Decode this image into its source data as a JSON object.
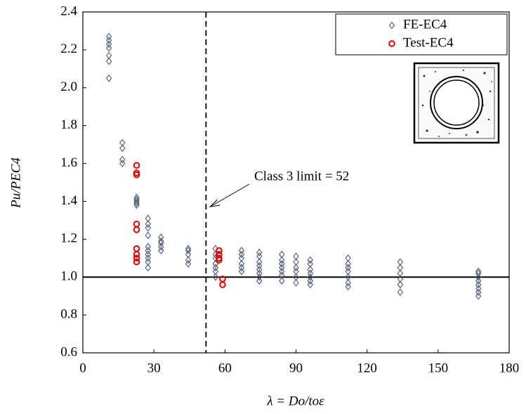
{
  "chart_data": {
    "type": "scatter",
    "xlabel": "λ = Do/toε",
    "ylabel": "Pu/PEC4",
    "xlim": [
      0,
      180
    ],
    "ylim": [
      0.6,
      2.4
    ],
    "xticks": [
      0,
      30,
      60,
      90,
      120,
      150,
      180
    ],
    "yticks": [
      0.6,
      0.8,
      {
        "value": 1,
        "label": "1.0"
      },
      1.2,
      1.4,
      1.6,
      1.8,
      {
        "value": 2,
        "label": "2.0"
      },
      2.2,
      2.4
    ],
    "legend": "upper right",
    "reference_line": 1,
    "limit_line": {
      "x": 52,
      "label": "Class 3 limit = 52"
    },
    "series": [
      {
        "name": "FE-EC4",
        "color": "#4d5b78",
        "marker": "diamond",
        "x": [
          11,
          11,
          11,
          11,
          11,
          11,
          11,
          16.7,
          16.7,
          16.7,
          16.7,
          22.7,
          22.7,
          22.7,
          22.7,
          22.7,
          27.5,
          27.5,
          27.5,
          27.5,
          27.5,
          27.5,
          27.5,
          27.5,
          27.5,
          27.5,
          33,
          33,
          33,
          33,
          33,
          44.5,
          44.5,
          44.5,
          44.5,
          44.5,
          56,
          56,
          56,
          56,
          56,
          56,
          56,
          67,
          67,
          67,
          67,
          67,
          67,
          74.5,
          74.5,
          74.5,
          74.5,
          74.5,
          74.5,
          74.5,
          74.5,
          84,
          84,
          84,
          84,
          84,
          84,
          84,
          90,
          90,
          90,
          90,
          90,
          90,
          96,
          96,
          96,
          96,
          96,
          96,
          96,
          112,
          112,
          112,
          112,
          112,
          112,
          112,
          134,
          134,
          134,
          134,
          134,
          134,
          167,
          167,
          167,
          167,
          167,
          167,
          167,
          167
        ],
        "values": [
          2.27,
          2.25,
          2.23,
          2.21,
          2.17,
          2.14,
          2.05,
          1.71,
          1.68,
          1.62,
          1.6,
          1.42,
          1.41,
          1.4,
          1.39,
          1.38,
          1.31,
          1.28,
          1.26,
          1.22,
          1.16,
          1.14,
          1.12,
          1.1,
          1.08,
          1.05,
          1.21,
          1.19,
          1.18,
          1.16,
          1.14,
          1.15,
          1.14,
          1.12,
          1.09,
          1.07,
          1.15,
          1.12,
          1.1,
          1.07,
          1.05,
          1.03,
          1,
          1.14,
          1.12,
          1.1,
          1.07,
          1.05,
          1.03,
          1.13,
          1.11,
          1.08,
          1.06,
          1.04,
          1.02,
          1,
          0.98,
          1.12,
          1.09,
          1.07,
          1.05,
          1.03,
          1.01,
          0.98,
          1.11,
          1.08,
          1.05,
          1.03,
          1,
          0.97,
          1.09,
          1.07,
          1.04,
          1.02,
          1,
          0.98,
          0.96,
          1.1,
          1.07,
          1.05,
          1.03,
          1,
          0.97,
          0.95,
          1.08,
          1.05,
          1.02,
          0.99,
          0.96,
          0.92,
          1.03,
          1.02,
          1,
          0.98,
          0.96,
          0.94,
          0.92,
          0.9
        ]
      },
      {
        "name": "Test-EC4",
        "color": "#e00000",
        "marker": "circle",
        "x": [
          22.7,
          22.7,
          22.7,
          22.7,
          22.7,
          22.7,
          22.7,
          22.7,
          22.7,
          57.5,
          57.5,
          57.5,
          57.5,
          59,
          59
        ],
        "values": [
          1.59,
          1.55,
          1.54,
          1.28,
          1.25,
          1.15,
          1.12,
          1.1,
          1.08,
          1.14,
          1.12,
          1.1,
          1.09,
          0.99,
          0.96
        ]
      }
    ]
  }
}
